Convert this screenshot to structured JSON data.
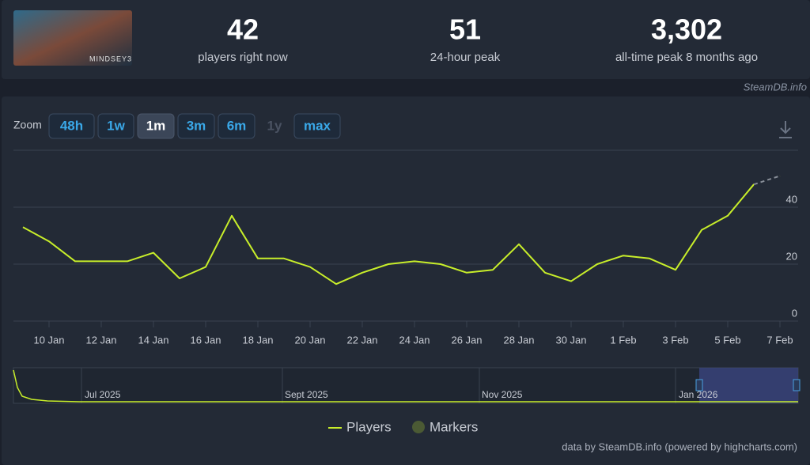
{
  "header": {
    "game_logo_text": "MINDSEY3",
    "stats": [
      {
        "value": "42",
        "label": "players right now"
      },
      {
        "value": "51",
        "label": "24-hour peak"
      },
      {
        "value": "3,302",
        "label": "all-time peak 8 months ago"
      }
    ],
    "source": "SteamDB.info"
  },
  "zoom": {
    "label": "Zoom",
    "buttons": [
      "48h",
      "1w",
      "1m",
      "3m",
      "6m",
      "1y",
      "max"
    ],
    "active": "1m",
    "disabled": "1y"
  },
  "navigator": {
    "labels": [
      "Jul 2025",
      "Sept 2025",
      "Nov 2025",
      "Jan 2026"
    ]
  },
  "credits": "data by SteamDB.info (powered by highcharts.com)",
  "chart_data": {
    "type": "line",
    "categories": [
      null,
      "10 Jan",
      null,
      "12 Jan",
      null,
      "14 Jan",
      null,
      "16 Jan",
      null,
      "18 Jan",
      null,
      "20 Jan",
      null,
      "22 Jan",
      null,
      "24 Jan",
      null,
      "26 Jan",
      null,
      "28 Jan",
      null,
      "30 Jan",
      null,
      "1 Feb",
      null,
      "3 Feb",
      null,
      "5 Feb",
      null,
      "7 Feb"
    ],
    "series": [
      {
        "name": "Players",
        "color": "#c8ee2a",
        "values": [
          33,
          28,
          21,
          21,
          21,
          24,
          15,
          19,
          37,
          22,
          22,
          19,
          13,
          17,
          20,
          21,
          20,
          17,
          18,
          27,
          17,
          14,
          20,
          23,
          22,
          18,
          32,
          37,
          48,
          51
        ]
      }
    ],
    "marker_legend": "Markers",
    "marker_color": "#4b5a34",
    "ylim": [
      0,
      60
    ],
    "yticks": [
      0,
      20,
      40
    ],
    "grid": true
  }
}
